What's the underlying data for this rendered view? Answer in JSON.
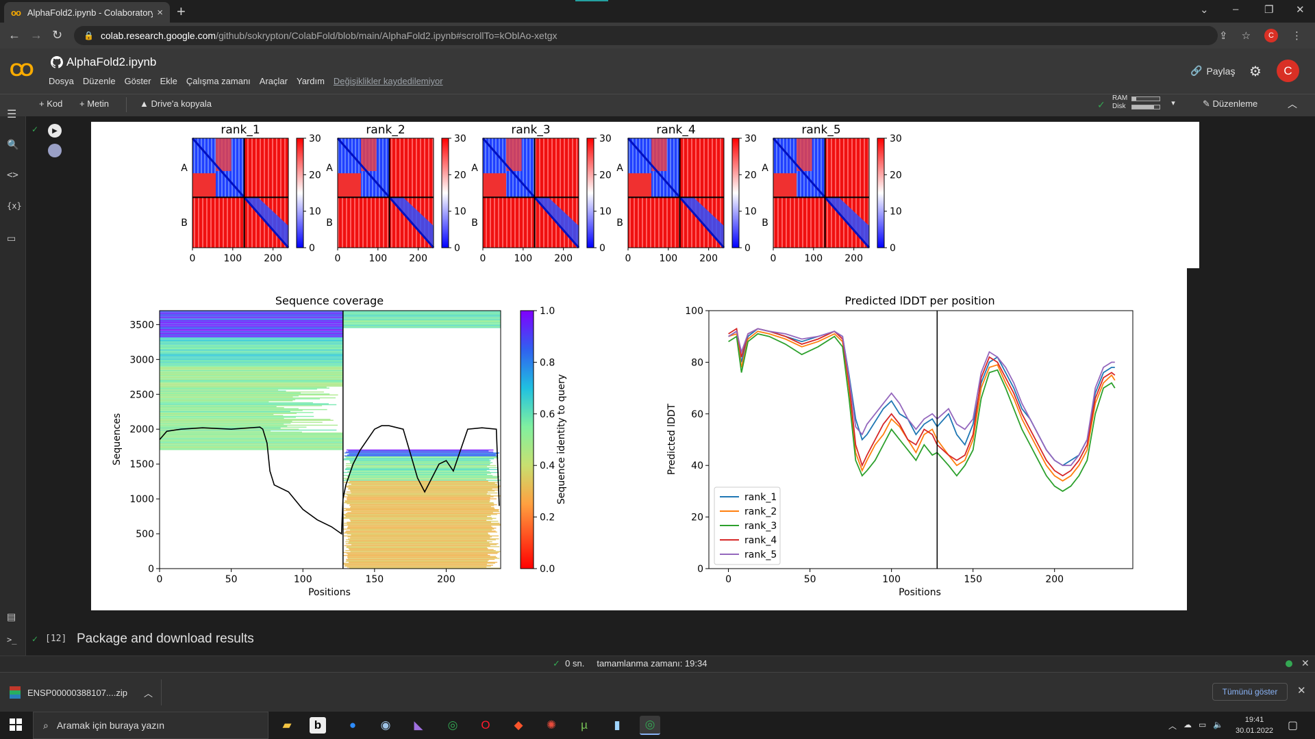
{
  "browser": {
    "tab_title": "AlphaFold2.ipynb - Colaboratory",
    "url_host": "colab.research.google.com",
    "url_path": "/github/sokrypton/ColabFold/blob/main/AlphaFold2.ipynb#scrollTo=kOblAo-xetgx",
    "profile_initial": "C"
  },
  "colab": {
    "logo": "CO",
    "notebook_title": "AlphaFold2.ipynb",
    "menu": [
      "Dosya",
      "Düzenle",
      "Göster",
      "Ekle",
      "Çalışma zamanı",
      "Araçlar",
      "Yardım"
    ],
    "unsaved_notice": "Değişiklikler kaydedilemiyor",
    "share_label": "Paylaş",
    "avatar_initial": "C"
  },
  "toolbar": {
    "add_code": "+ Kod",
    "add_text": "+ Metin",
    "copy_drive": "Drive'a kopyala",
    "ram_label": "RAM",
    "disk_label": "Disk",
    "ram_fraction": 0.15,
    "disk_fraction": 0.8,
    "edit_mode": "Düzenleme"
  },
  "pae_panels": {
    "titles": [
      "rank_1",
      "rank_2",
      "rank_3",
      "rank_4",
      "rank_5"
    ],
    "colorbar_ticks": [
      "30",
      "20",
      "10",
      "0"
    ],
    "x_ticks": [
      "0",
      "100",
      "200"
    ],
    "y_chain_labels": [
      "A",
      "B"
    ]
  },
  "chart_data": [
    {
      "type": "heatmap",
      "title": "Sequence coverage",
      "xlabel": "Positions",
      "ylabel": "Sequences",
      "xlim": [
        0,
        238
      ],
      "ylim": [
        0,
        3700
      ],
      "x_ticks": [
        0,
        50,
        100,
        150,
        200
      ],
      "y_ticks": [
        0,
        500,
        1000,
        1500,
        2000,
        2500,
        3000,
        3500
      ],
      "chain_break": 128,
      "colorbar_label": "Sequence identity to query",
      "colorbar_range": [
        0.0,
        1.0
      ],
      "colorbar_ticks": [
        "1.0",
        "0.8",
        "0.6",
        "0.4",
        "0.2",
        "0.0"
      ],
      "coverage_line": {
        "x": [
          0,
          5,
          15,
          30,
          50,
          70,
          72,
          75,
          77,
          80,
          90,
          100,
          110,
          120,
          127,
          128,
          130,
          135,
          140,
          150,
          155,
          160,
          170,
          175,
          180,
          185,
          190,
          195,
          200,
          205,
          210,
          215,
          225,
          235,
          237
        ],
        "y": [
          1850,
          1970,
          2000,
          2020,
          2000,
          2030,
          2000,
          1800,
          1400,
          1200,
          1100,
          850,
          700,
          600,
          500,
          1000,
          1200,
          1500,
          1700,
          2000,
          2050,
          2050,
          2000,
          1650,
          1300,
          1100,
          1300,
          1500,
          1550,
          1400,
          1700,
          2000,
          2020,
          2000,
          900
        ]
      }
    },
    {
      "type": "line",
      "title": "Predicted lDDT per position",
      "xlabel": "Positions",
      "ylabel": "Predicted lDDT",
      "xlim": [
        -12,
        248
      ],
      "ylim": [
        0,
        100
      ],
      "x_ticks": [
        0,
        50,
        100,
        150,
        200
      ],
      "y_ticks": [
        0,
        20,
        40,
        60,
        80,
        100
      ],
      "chain_break": 128,
      "legend_position": "bottom-left",
      "x": [
        0,
        5,
        8,
        12,
        18,
        25,
        35,
        45,
        55,
        65,
        70,
        74,
        78,
        82,
        85,
        90,
        95,
        100,
        105,
        110,
        115,
        120,
        125,
        128,
        135,
        140,
        145,
        150,
        155,
        160,
        165,
        170,
        175,
        180,
        185,
        190,
        195,
        200,
        205,
        210,
        215,
        220,
        225,
        230,
        235,
        237
      ],
      "series": [
        {
          "name": "rank_1",
          "color": "#1f77b4",
          "values": [
            90,
            92,
            80,
            90,
            93,
            92,
            90,
            88,
            90,
            92,
            90,
            75,
            58,
            50,
            52,
            57,
            62,
            65,
            60,
            58,
            52,
            56,
            58,
            55,
            60,
            52,
            48,
            56,
            72,
            80,
            82,
            76,
            70,
            62,
            58,
            52,
            46,
            42,
            40,
            42,
            44,
            50,
            68,
            76,
            78,
            78
          ]
        },
        {
          "name": "rank_2",
          "color": "#ff7f0e",
          "values": [
            90,
            91,
            78,
            89,
            92,
            91,
            89,
            86,
            88,
            91,
            88,
            70,
            45,
            38,
            42,
            48,
            52,
            58,
            55,
            50,
            45,
            52,
            54,
            50,
            44,
            40,
            42,
            50,
            70,
            78,
            79,
            72,
            66,
            58,
            52,
            46,
            40,
            36,
            34,
            36,
            40,
            46,
            64,
            72,
            75,
            73
          ]
        },
        {
          "name": "rank_3",
          "color": "#2ca02c",
          "values": [
            88,
            90,
            76,
            88,
            91,
            90,
            87,
            83,
            86,
            90,
            86,
            66,
            42,
            36,
            38,
            42,
            48,
            54,
            50,
            46,
            42,
            48,
            44,
            45,
            40,
            36,
            40,
            46,
            66,
            76,
            77,
            70,
            62,
            54,
            48,
            42,
            36,
            32,
            30,
            32,
            36,
            42,
            60,
            70,
            72,
            70
          ]
        },
        {
          "name": "rank_4",
          "color": "#d62728",
          "values": [
            91,
            93,
            82,
            91,
            93,
            92,
            90,
            87,
            89,
            92,
            89,
            72,
            48,
            40,
            44,
            50,
            56,
            60,
            56,
            50,
            48,
            54,
            52,
            48,
            44,
            42,
            44,
            52,
            74,
            82,
            80,
            74,
            68,
            60,
            54,
            48,
            42,
            38,
            36,
            38,
            42,
            48,
            66,
            74,
            76,
            75
          ]
        },
        {
          "name": "rank_5",
          "color": "#9467bd",
          "values": [
            90,
            92,
            84,
            91,
            93,
            92,
            91,
            89,
            90,
            92,
            90,
            74,
            55,
            52,
            56,
            60,
            64,
            68,
            64,
            58,
            54,
            58,
            60,
            58,
            62,
            56,
            54,
            58,
            76,
            84,
            82,
            78,
            72,
            64,
            58,
            52,
            46,
            42,
            40,
            40,
            44,
            50,
            70,
            78,
            80,
            80
          ]
        }
      ]
    }
  ],
  "next_cell": {
    "number": "[12]",
    "title": "Package and download results"
  },
  "status": {
    "duration": "0 sn.",
    "completed": "tamamlanma zamanı: 19:34"
  },
  "download": {
    "filename": "ENSP00000388107....zip",
    "show_all": "Tümünü göster"
  },
  "taskbar": {
    "search_placeholder": "Aramak için buraya yazın",
    "time": "19:41",
    "date": "30.01.2022"
  }
}
